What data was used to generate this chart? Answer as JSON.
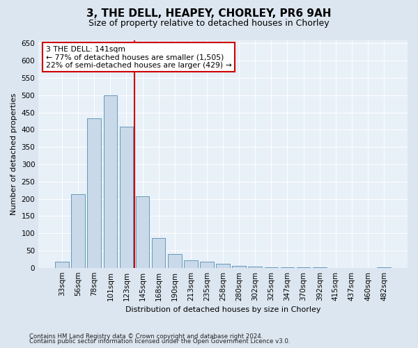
{
  "title": "3, THE DELL, HEAPEY, CHORLEY, PR6 9AH",
  "subtitle": "Size of property relative to detached houses in Chorley",
  "xlabel": "Distribution of detached houses by size in Chorley",
  "ylabel": "Number of detached properties",
  "categories": [
    "33sqm",
    "56sqm",
    "78sqm",
    "101sqm",
    "123sqm",
    "145sqm",
    "168sqm",
    "190sqm",
    "213sqm",
    "235sqm",
    "258sqm",
    "280sqm",
    "302sqm",
    "325sqm",
    "347sqm",
    "370sqm",
    "392sqm",
    "415sqm",
    "437sqm",
    "460sqm",
    "482sqm"
  ],
  "values": [
    17,
    214,
    434,
    500,
    408,
    207,
    87,
    40,
    22,
    17,
    12,
    5,
    3,
    2,
    1,
    1,
    1,
    0,
    0,
    0,
    2
  ],
  "bar_color": "#c9d9ea",
  "bar_edge_color": "#6699bb",
  "marker_line_color": "#cc0000",
  "marker_index": 4,
  "annotation_line1": "3 THE DELL: 141sqm",
  "annotation_line2": "← 77% of detached houses are smaller (1,505)",
  "annotation_line3": "22% of semi-detached houses are larger (429) →",
  "annotation_box_color": "#ffffff",
  "annotation_box_edge_color": "#cc0000",
  "ylim": [
    0,
    660
  ],
  "yticks": [
    0,
    50,
    100,
    150,
    200,
    250,
    300,
    350,
    400,
    450,
    500,
    550,
    600,
    650
  ],
  "footer_line1": "Contains HM Land Registry data © Crown copyright and database right 2024.",
  "footer_line2": "Contains public sector information licensed under the Open Government Licence v3.0.",
  "bg_color": "#dce6f0",
  "plot_bg_color": "#e8f0f8",
  "grid_color": "#ffffff",
  "title_fontsize": 11,
  "subtitle_fontsize": 9,
  "axis_label_fontsize": 8,
  "tick_fontsize": 7.5,
  "footer_fontsize": 6.2,
  "annotation_fontsize": 7.8
}
